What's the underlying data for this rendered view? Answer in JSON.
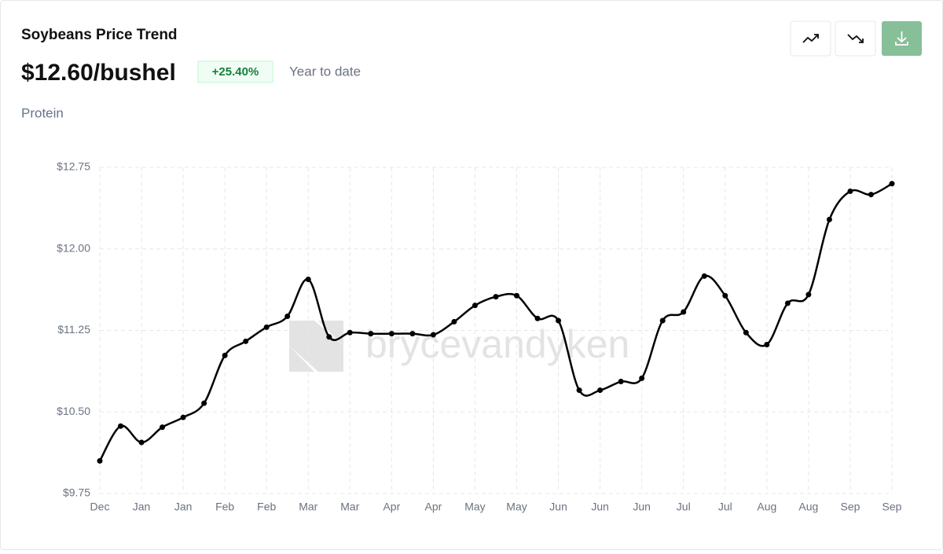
{
  "chart_data": {
    "type": "line",
    "title": "Soybeans Price Trend",
    "price": "$12.60/bushel",
    "change": "+25.40%",
    "period": "Year to date",
    "subtitle": "Protein",
    "watermark": "brycevandyken",
    "color": "#000000",
    "grid": true,
    "categories": [
      "Dec",
      null,
      "Jan",
      null,
      "Jan",
      null,
      "Feb",
      null,
      "Feb",
      null,
      "Mar",
      null,
      "Mar",
      null,
      "Apr",
      null,
      "Apr",
      null,
      "May",
      null,
      "May",
      null,
      "Jun",
      null,
      "Jun",
      null,
      "Jun",
      null,
      "Jul",
      null,
      "Jul",
      null,
      "Aug",
      null,
      "Aug",
      null,
      "Sep",
      null,
      "Sep"
    ],
    "values": [
      10.05,
      10.37,
      10.22,
      10.36,
      10.45,
      10.58,
      11.02,
      11.15,
      11.28,
      11.38,
      11.72,
      11.19,
      11.23,
      11.22,
      11.22,
      11.22,
      11.21,
      11.33,
      11.48,
      11.56,
      11.57,
      11.36,
      11.34,
      10.7,
      10.7,
      10.78,
      10.81,
      11.34,
      11.42,
      11.75,
      11.57,
      11.23,
      11.12,
      11.5,
      11.58,
      12.27,
      12.53,
      12.5,
      12.6
    ],
    "ylim": [
      9.75,
      12.75
    ],
    "yticks": [
      {
        "value": 9.75,
        "label": "$9.75"
      },
      {
        "value": 10.5,
        "label": "$10.50"
      },
      {
        "value": 11.25,
        "label": "$11.25"
      },
      {
        "value": 12.0,
        "label": "$12.00"
      },
      {
        "value": 12.75,
        "label": "$12.75"
      }
    ]
  }
}
